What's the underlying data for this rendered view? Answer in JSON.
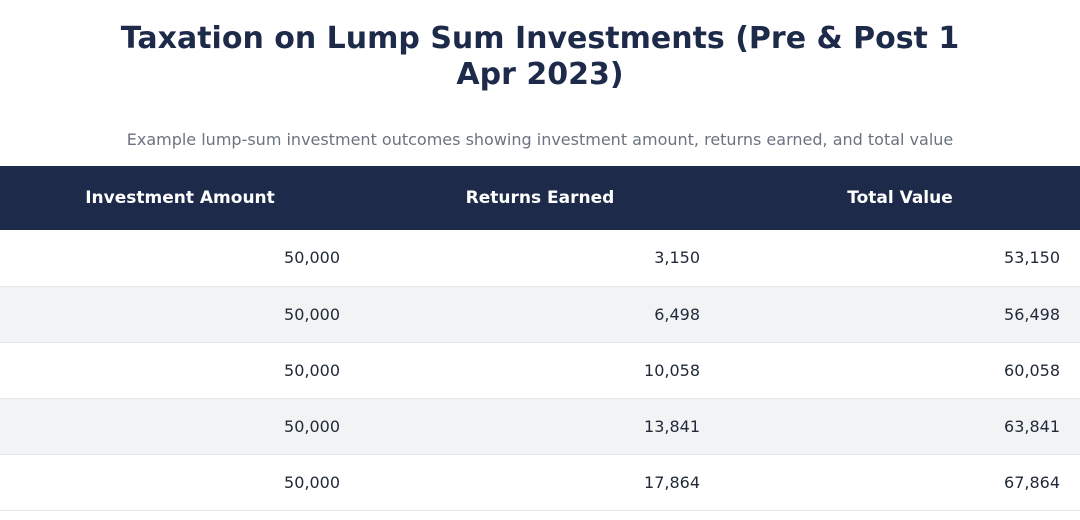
{
  "title": "Taxation on Lump Sum Investments (Pre & Post 1 Apr 2023)",
  "subtitle": "Example lump-sum investment outcomes showing investment amount, returns earned, and total value",
  "colors": {
    "header_background": "#1e2a4a",
    "title": "#1e2a4a",
    "stripe": "#f2f3f5"
  },
  "chart_data": {
    "type": "table",
    "title": "Taxation on Lump Sum Investments (Pre & Post 1 Apr 2023)",
    "subtitle": "Example lump-sum investment outcomes showing investment amount, returns earned, and total value",
    "columns": [
      "Investment Amount",
      "Returns Earned",
      "Total Value"
    ],
    "rows": [
      [
        "50,000",
        "3,150",
        "53,150"
      ],
      [
        "50,000",
        "6,498",
        "56,498"
      ],
      [
        "50,000",
        "10,058",
        "60,058"
      ],
      [
        "50,000",
        "13,841",
        "63,841"
      ],
      [
        "50,000",
        "17,864",
        "67,864"
      ]
    ]
  }
}
